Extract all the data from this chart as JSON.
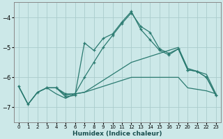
{
  "xlabel": "Humidex (Indice chaleur)",
  "bg_color": "#cce8e8",
  "grid_color": "#aacccc",
  "line_color": "#2a7a70",
  "xlim": [
    -0.5,
    23.5
  ],
  "ylim": [
    -7.5,
    -3.5
  ],
  "yticks": [
    -7,
    -6,
    -5,
    -4
  ],
  "xticks": [
    0,
    1,
    2,
    3,
    4,
    5,
    6,
    7,
    8,
    9,
    10,
    11,
    12,
    13,
    14,
    15,
    16,
    17,
    20,
    21,
    22,
    23
  ],
  "line1_x": [
    0,
    1,
    2,
    3,
    4,
    5,
    6,
    7,
    8,
    9,
    10,
    11,
    12,
    13,
    14,
    15,
    16,
    17,
    20,
    21,
    22,
    23
  ],
  "line1_y": [
    -6.3,
    -6.9,
    -6.5,
    -6.35,
    -6.35,
    -6.55,
    -6.55,
    -6.0,
    -5.5,
    -5.0,
    -4.6,
    -4.2,
    -3.85,
    -4.3,
    -4.5,
    -5.05,
    -5.2,
    -5.05,
    -5.75,
    -5.8,
    -6.0,
    -6.6
  ],
  "line2_x": [
    0,
    1,
    2,
    3,
    4,
    5,
    6,
    7,
    8,
    9,
    10,
    11,
    12,
    13,
    14,
    15,
    16,
    17,
    20,
    21,
    22,
    23
  ],
  "line2_y": [
    -6.3,
    -6.9,
    -6.5,
    -6.35,
    -6.35,
    -6.6,
    -6.55,
    -6.5,
    -6.4,
    -6.3,
    -6.2,
    -6.1,
    -6.0,
    -6.0,
    -6.0,
    -6.0,
    -6.0,
    -6.0,
    -6.35,
    -6.4,
    -6.45,
    -6.55
  ],
  "line3_x": [
    0,
    1,
    2,
    3,
    4,
    5,
    6,
    7,
    8,
    9,
    10,
    11,
    12,
    13,
    14,
    15,
    16,
    17,
    20,
    21,
    22,
    23
  ],
  "line3_y": [
    -6.3,
    -6.9,
    -6.5,
    -6.35,
    -6.55,
    -6.7,
    -6.55,
    -6.5,
    -6.3,
    -6.1,
    -5.9,
    -5.7,
    -5.5,
    -5.4,
    -5.3,
    -5.2,
    -5.1,
    -5.0,
    -5.7,
    -5.8,
    -5.9,
    -6.55
  ],
  "line4_x": [
    3,
    4,
    5,
    6,
    7,
    8,
    9,
    10,
    11,
    12,
    13,
    14,
    15,
    16,
    17,
    20,
    21,
    22,
    23
  ],
  "line4_y": [
    -6.35,
    -6.35,
    -6.65,
    -6.6,
    -4.85,
    -5.1,
    -4.7,
    -4.55,
    -4.15,
    -3.8,
    -4.4,
    -4.75,
    -5.1,
    -5.25,
    -5.05,
    -5.75,
    -5.8,
    -6.0,
    -6.6
  ]
}
